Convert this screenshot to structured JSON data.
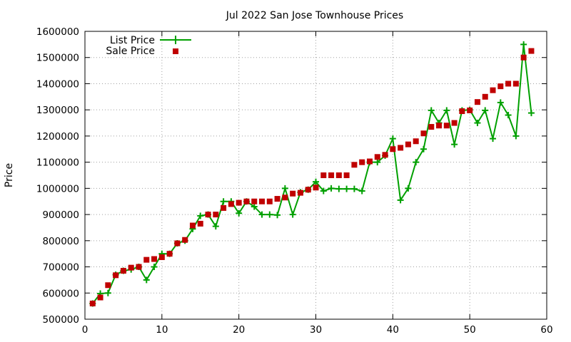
{
  "chart_data": {
    "type": "line",
    "title": "Jul 2022 San Jose Townhouse Prices",
    "xlabel": "",
    "ylabel": "Price",
    "xlim": [
      0,
      60
    ],
    "ylim": [
      500000,
      1600000
    ],
    "x_ticks": [
      "0",
      "10",
      "20",
      "30",
      "40",
      "50",
      "60"
    ],
    "y_ticks": [
      "500000",
      "600000",
      "700000",
      "800000",
      "900000",
      "1000000",
      "1100000",
      "1200000",
      "1300000",
      "1400000",
      "1500000",
      "1600000"
    ],
    "grid": true,
    "legend_position": "top-left",
    "series": [
      {
        "name": "List Price",
        "style": "line+cross",
        "color": "#00a000",
        "x": [
          1,
          2,
          3,
          4,
          5,
          6,
          7,
          8,
          9,
          10,
          11,
          12,
          13,
          14,
          15,
          16,
          17,
          18,
          19,
          20,
          21,
          22,
          23,
          24,
          25,
          26,
          27,
          28,
          29,
          30,
          31,
          32,
          33,
          34,
          35,
          36,
          37,
          38,
          39,
          40,
          41,
          42,
          43,
          44,
          45,
          46,
          47,
          48,
          49,
          50,
          51,
          52,
          53,
          54,
          55,
          56,
          57,
          58
        ],
        "y": [
          560000,
          598000,
          600000,
          670000,
          685000,
          690000,
          700000,
          650000,
          700000,
          750000,
          750000,
          790000,
          800000,
          845000,
          895000,
          900000,
          855000,
          950000,
          950000,
          905000,
          950000,
          930000,
          900000,
          900000,
          898000,
          1000000,
          900000,
          985000,
          995000,
          1025000,
          990000,
          1000000,
          998000,
          998000,
          998000,
          990000,
          1100000,
          1100000,
          1125000,
          1190000,
          955000,
          1000000,
          1100000,
          1150000,
          1298000,
          1250000,
          1298000,
          1168000,
          1298000,
          1300000,
          1250000,
          1298000,
          1190000,
          1328000,
          1280000,
          1200000,
          1550000,
          1288000
        ]
      },
      {
        "name": "Sale Price",
        "style": "square",
        "color": "#c00000",
        "x": [
          1,
          2,
          3,
          4,
          5,
          6,
          7,
          8,
          9,
          10,
          11,
          12,
          13,
          14,
          15,
          16,
          17,
          18,
          19,
          20,
          21,
          22,
          23,
          24,
          25,
          26,
          27,
          28,
          29,
          30,
          31,
          32,
          33,
          34,
          35,
          36,
          37,
          38,
          39,
          40,
          41,
          42,
          43,
          44,
          45,
          46,
          47,
          48,
          49,
          50,
          51,
          52,
          53,
          54,
          55,
          56,
          57,
          58
        ],
        "y": [
          560000,
          583000,
          630000,
          668000,
          685000,
          697000,
          700000,
          727000,
          730000,
          737000,
          750000,
          790000,
          803000,
          858000,
          865000,
          900000,
          900000,
          925000,
          940000,
          945000,
          950000,
          950000,
          950000,
          950000,
          960000,
          965000,
          980000,
          983000,
          995000,
          1003000,
          1050000,
          1050000,
          1050000,
          1050000,
          1090000,
          1100000,
          1103000,
          1120000,
          1128000,
          1150000,
          1155000,
          1168000,
          1180000,
          1210000,
          1235000,
          1240000,
          1240000,
          1250000,
          1295000,
          1298000,
          1330000,
          1350000,
          1375000,
          1390000,
          1400000,
          1400000,
          1500000,
          1525000
        ]
      }
    ]
  }
}
